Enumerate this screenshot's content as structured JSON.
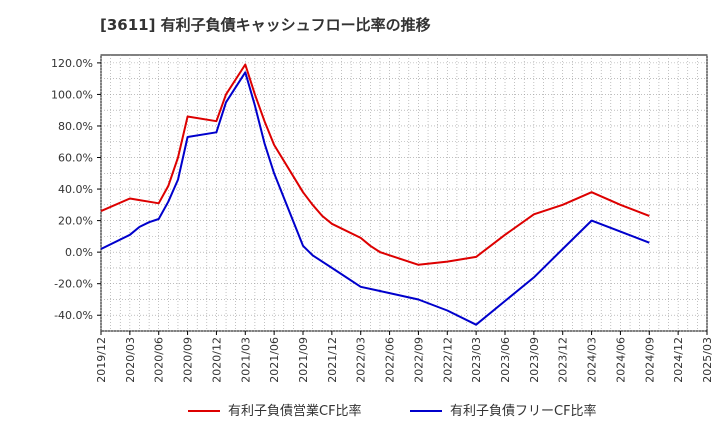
{
  "chart_data": {
    "type": "line",
    "title": "[3611]  有利子負債キャッシュフロー比率の推移",
    "xlabel": "",
    "ylabel": "",
    "x_ticks": [
      "2019/12",
      "2020/03",
      "2020/06",
      "2020/09",
      "2020/12",
      "2021/03",
      "2021/06",
      "2021/09",
      "2021/12",
      "2022/03",
      "2022/06",
      "2022/09",
      "2022/12",
      "2023/03",
      "2023/06",
      "2023/09",
      "2023/12",
      "2024/03",
      "2024/06",
      "2024/09",
      "2024/12",
      "2025/03"
    ],
    "y_ticks": [
      "120.0%",
      "100.0%",
      "80.0%",
      "60.0%",
      "40.0%",
      "20.0%",
      "0.0%",
      "-20.0%",
      "-40.0%"
    ],
    "y_tick_values": [
      120,
      100,
      80,
      60,
      40,
      20,
      0,
      -20,
      -40
    ],
    "ylim": [
      -50,
      125
    ],
    "grid": true,
    "legend_position": "bottom",
    "series": [
      {
        "name": "有利子負債営業CF比率",
        "color": "#dd0000",
        "x": [
          "2019/12",
          "2020/03",
          "2020/04",
          "2020/05",
          "2020/06",
          "2020/07",
          "2020/08",
          "2020/09",
          "2020/12",
          "2021/01",
          "2021/03",
          "2021/04",
          "2021/05",
          "2021/06",
          "2021/09",
          "2021/10",
          "2021/11",
          "2021/12",
          "2022/03",
          "2022/04",
          "2022/05",
          "2022/06",
          "2022/09",
          "2022/12",
          "2023/03",
          "2023/06",
          "2023/09",
          "2023/12",
          "2024/03",
          "2024/06",
          "2024/09"
        ],
        "values": [
          26,
          34,
          33,
          32,
          31,
          42,
          60,
          86,
          83,
          100,
          119,
          100,
          83,
          68,
          38,
          30,
          23,
          18,
          9,
          4,
          0,
          -2,
          -8,
          -6,
          -3,
          11,
          24,
          30,
          38,
          30,
          23
        ]
      },
      {
        "name": "有利子負債フリーCF比率",
        "color": "#0000cc",
        "x": [
          "2019/12",
          "2020/03",
          "2020/04",
          "2020/05",
          "2020/06",
          "2020/07",
          "2020/08",
          "2020/09",
          "2020/12",
          "2021/01",
          "2021/03",
          "2021/04",
          "2021/05",
          "2021/06",
          "2021/09",
          "2021/10",
          "2021/11",
          "2021/12",
          "2022/03",
          "2022/06",
          "2022/09",
          "2022/12",
          "2023/03",
          "2023/06",
          "2023/09",
          "2023/12",
          "2024/03",
          "2024/06",
          "2024/09"
        ],
        "values": [
          2,
          11,
          16,
          19,
          21,
          32,
          46,
          73,
          76,
          95,
          114,
          93,
          69,
          50,
          4,
          -2,
          -6,
          -10,
          -22,
          -26,
          -30,
          -37,
          -46,
          -31,
          -16,
          2,
          20,
          13,
          6
        ]
      }
    ]
  }
}
